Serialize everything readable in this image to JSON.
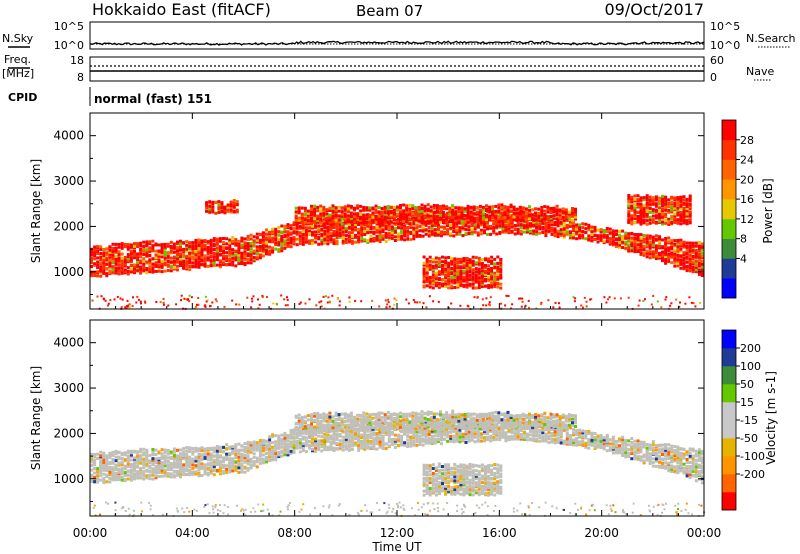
{
  "header": {
    "title": "Hokkaido East (fitACF)",
    "beam": "Beam 07",
    "date": "09/Oct/2017"
  },
  "left_labels": {
    "nsky": "N.Sky",
    "freq": "Freq.",
    "freq_unit": "[MHz]",
    "cpid": "CPID"
  },
  "right_labels": {
    "nsearch": "N.Search",
    "nave": "Nave"
  },
  "noise_panel": {
    "ticks_left": [
      "10^5",
      "10^0"
    ],
    "ticks_right": [
      "10^5",
      "10^0"
    ]
  },
  "freq_panel": {
    "ticks_left": [
      "18",
      "8"
    ],
    "ticks_right": [
      "60",
      "0"
    ]
  },
  "cpid_text": "normal (fast) 151",
  "colors": {
    "power_scale": [
      "#0000ff",
      "#1e3c96",
      "#3c8c3c",
      "#64c800",
      "#e6c800",
      "#ff9600",
      "#ff6400",
      "#ff3200",
      "#ff0000"
    ],
    "velocity_scale": [
      "#ff0000",
      "#ff6400",
      "#ff9600",
      "#e6b400",
      "#c8c8c8",
      "#c8c8c8",
      "#64c800",
      "#3c8c3c",
      "#1e3c96",
      "#0000ff"
    ],
    "ground_scatter": "#c0c0b8"
  },
  "chart_data": [
    {
      "type": "heatmap",
      "name": "Power",
      "ylabel": "Slant Range [km]",
      "yticks": [
        "4000",
        "3000",
        "2000",
        "1000"
      ],
      "ytick_values": [
        4000,
        3000,
        2000,
        1000
      ],
      "ylim": [
        180,
        4500
      ],
      "colorbar_label": "Power [dB]",
      "colorbar_ticks": [
        "28",
        "24",
        "20",
        "16",
        "12",
        "8",
        "4"
      ],
      "colorbar_range": [
        0,
        32
      ],
      "xlim": [
        0,
        24
      ],
      "bands": [
        {
          "x": [
            0,
            6,
            8,
            11,
            14,
            17,
            20,
            24
          ],
          "y_low": [
            950,
            1200,
            1650,
            1700,
            1850,
            1900,
            1700,
            950
          ],
          "y_high": [
            1600,
            1800,
            2150,
            2300,
            2350,
            2350,
            2000,
            1650
          ]
        },
        {
          "x": [
            4.5,
            5.8
          ],
          "y_low": [
            2350,
            2350
          ],
          "y_high": [
            2600,
            2600
          ]
        },
        {
          "x": [
            8,
            11,
            15,
            19
          ],
          "y_low": [
            2100,
            2100,
            2150,
            2200
          ],
          "y_high": [
            2450,
            2500,
            2500,
            2450
          ]
        },
        {
          "x": [
            13,
            16
          ],
          "y_low": [
            700,
            700
          ],
          "y_high": [
            1350,
            1350
          ]
        },
        {
          "x": [
            21,
            23.5
          ],
          "y_low": [
            2100,
            2100
          ],
          "y_high": [
            2700,
            2700
          ]
        }
      ]
    },
    {
      "type": "heatmap",
      "name": "Velocity",
      "ylabel": "Slant Range [km]",
      "xlabel": "Time UT",
      "xticks": [
        "00:00",
        "04:00",
        "08:00",
        "12:00",
        "16:00",
        "20:00",
        "00:00"
      ],
      "xtick_values": [
        0,
        4,
        8,
        12,
        16,
        20,
        24
      ],
      "xlim": [
        0,
        24
      ],
      "yticks": [
        "4000",
        "3000",
        "2000",
        "1000"
      ],
      "ytick_values": [
        4000,
        3000,
        2000,
        1000
      ],
      "ylim": [
        180,
        4500
      ],
      "colorbar_label": "Velocity [m s-1]",
      "colorbar_ticks": [
        "200",
        "100",
        "50",
        "15",
        "-15",
        "-50",
        "-100",
        "-200"
      ],
      "bands": [
        {
          "x": [
            0,
            6,
            8,
            11,
            14,
            17,
            20,
            24
          ],
          "y_low": [
            950,
            1200,
            1650,
            1700,
            1850,
            1900,
            1700,
            950
          ],
          "y_high": [
            1600,
            1800,
            2150,
            2300,
            2350,
            2350,
            2000,
            1650
          ]
        },
        {
          "x": [
            8,
            11,
            15,
            19
          ],
          "y_low": [
            2100,
            2100,
            2150,
            2200
          ],
          "y_high": [
            2450,
            2500,
            2500,
            2450
          ]
        },
        {
          "x": [
            13,
            16
          ],
          "y_low": [
            700,
            700
          ],
          "y_high": [
            1350,
            1350
          ]
        }
      ]
    }
  ]
}
